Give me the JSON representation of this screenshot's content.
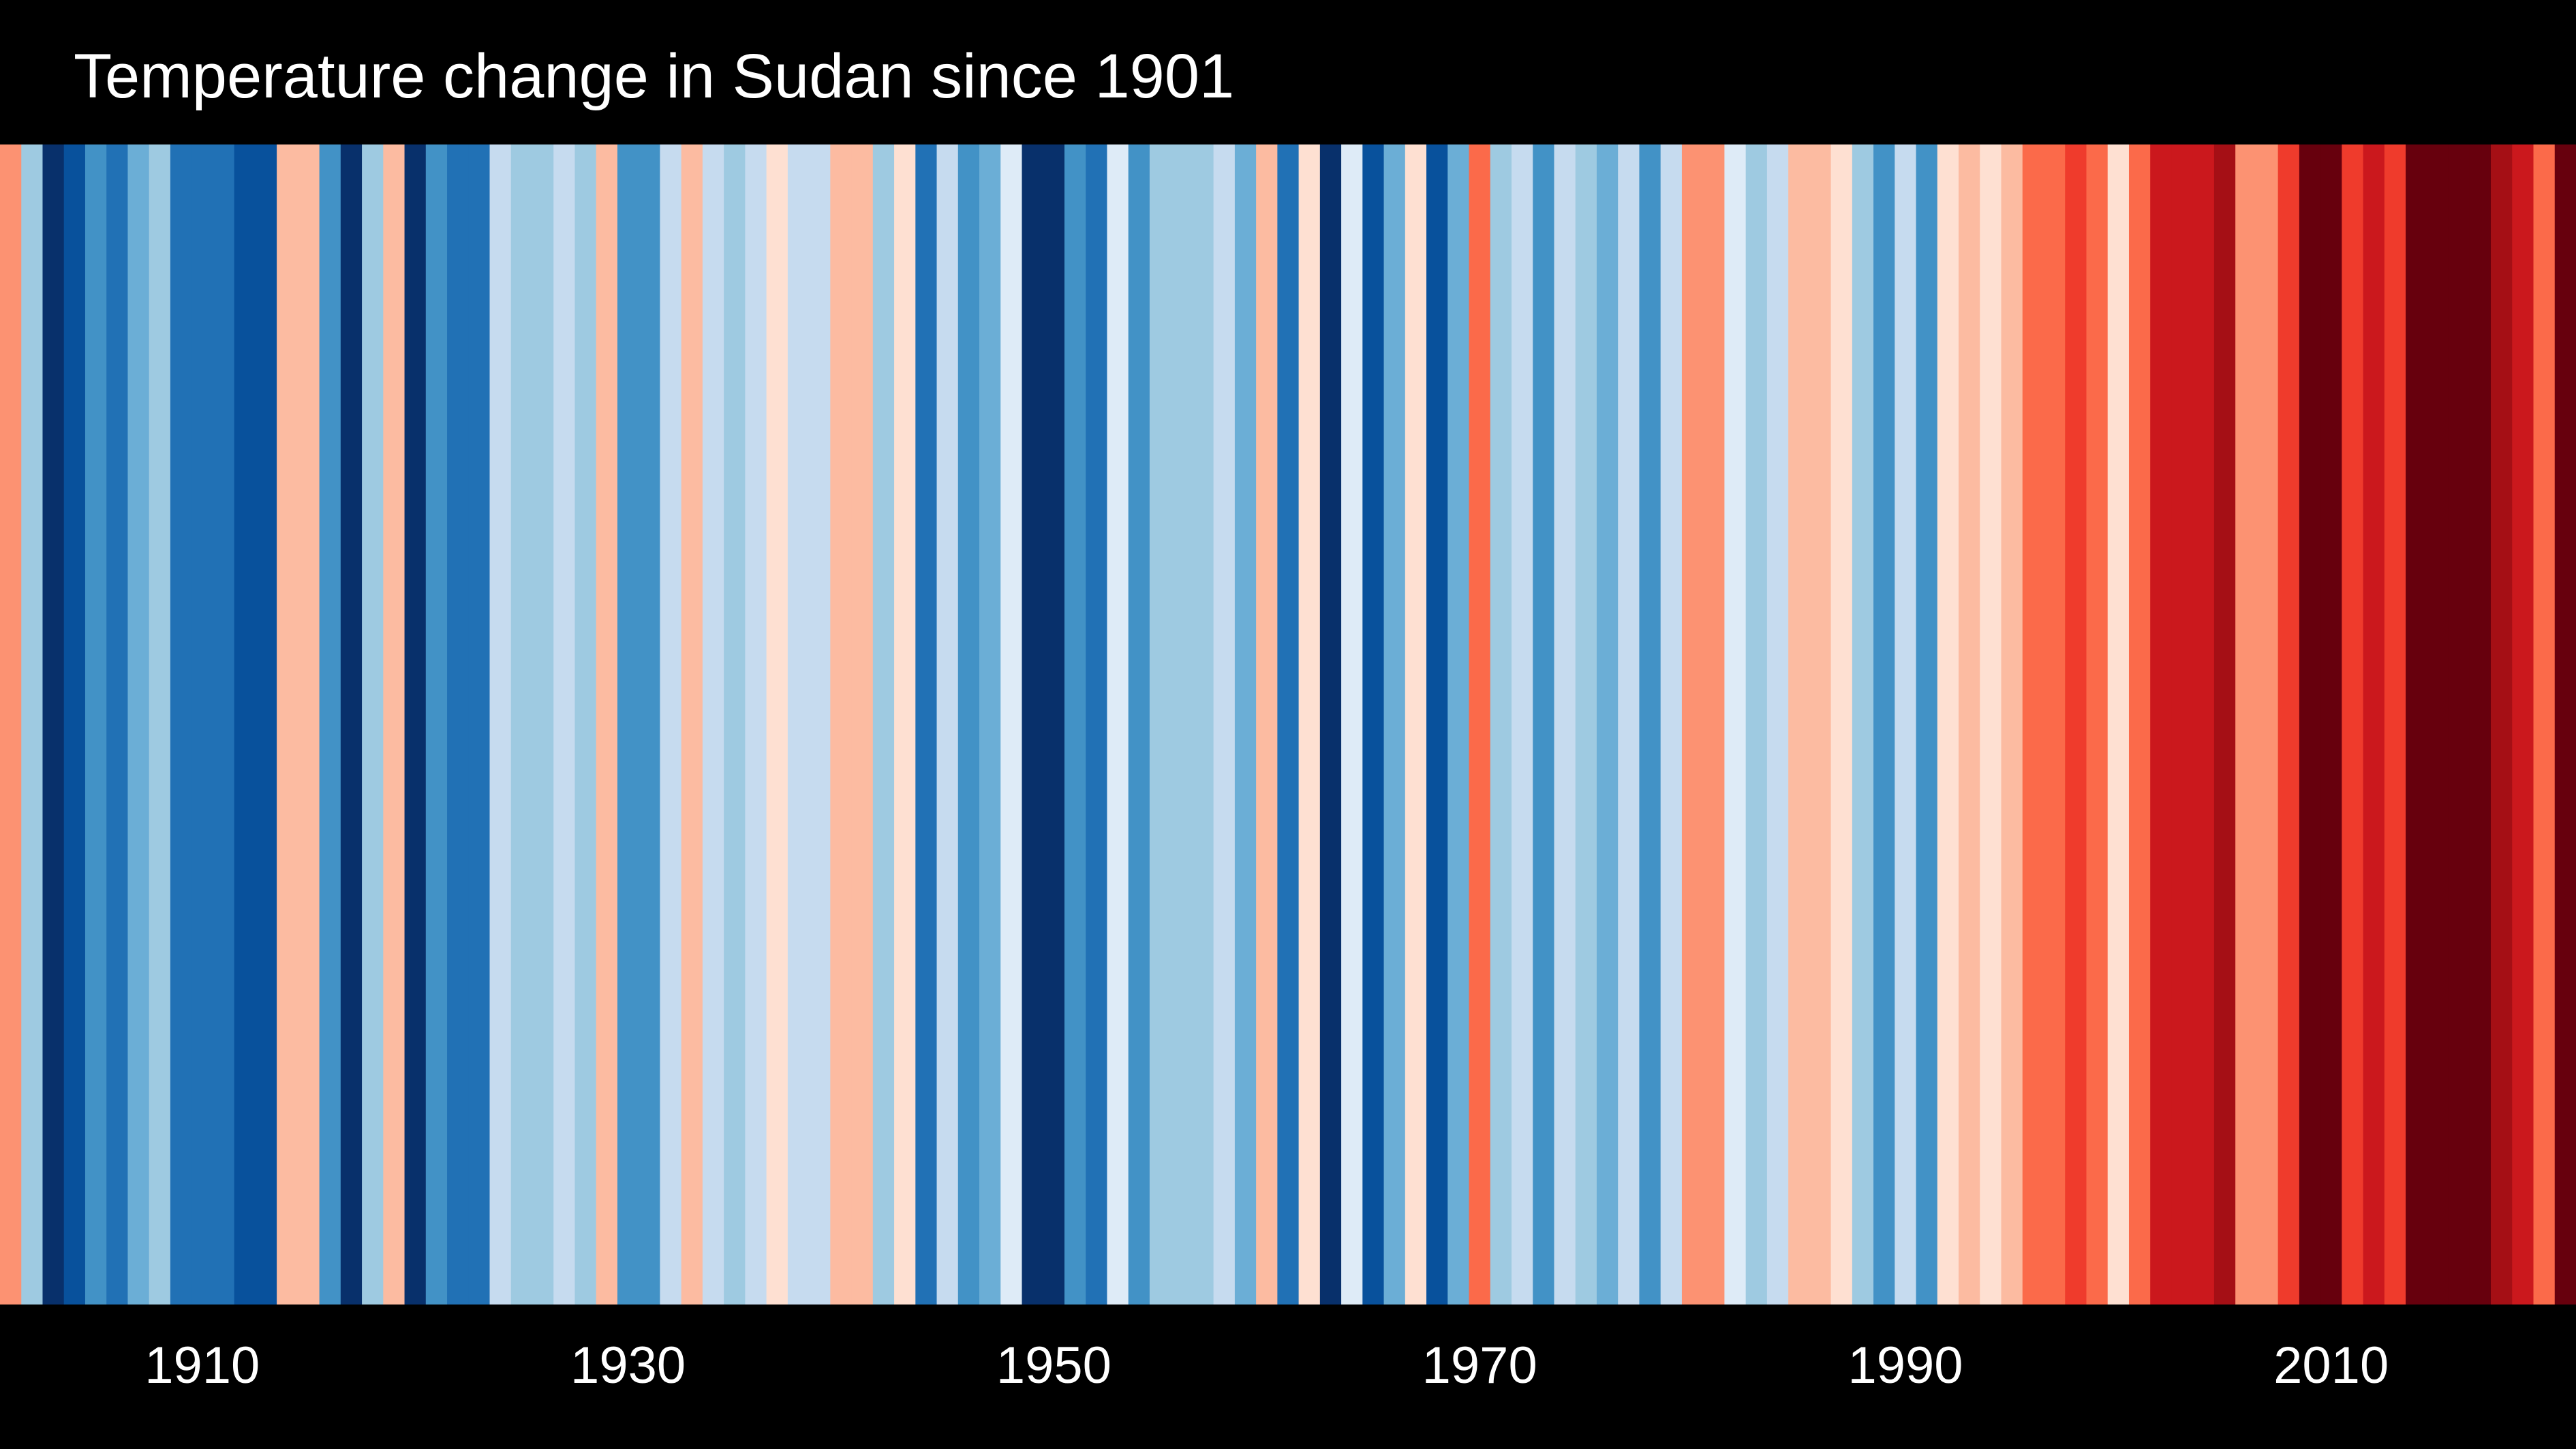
{
  "header": {
    "title": "Temperature change in Sudan since 1901"
  },
  "chart_data": {
    "type": "heatmap",
    "title": "Temperature change in Sudan since 1901",
    "x_start_year": 1901,
    "x_end_year": 2021,
    "x_tick_labels": [
      "1910",
      "1930",
      "1950",
      "1970",
      "1990",
      "2010"
    ],
    "x_tick_years": [
      1910,
      1930,
      1950,
      1970,
      1990,
      2010
    ],
    "colormap": "RdBu (reversed): dark blue = cooler, dark red = warmer",
    "years": [
      1901,
      1902,
      1903,
      1904,
      1905,
      1906,
      1907,
      1908,
      1909,
      1910,
      1911,
      1912,
      1913,
      1914,
      1915,
      1916,
      1917,
      1918,
      1919,
      1920,
      1921,
      1922,
      1923,
      1924,
      1925,
      1926,
      1927,
      1928,
      1929,
      1930,
      1931,
      1932,
      1933,
      1934,
      1935,
      1936,
      1937,
      1938,
      1939,
      1940,
      1941,
      1942,
      1943,
      1944,
      1945,
      1946,
      1947,
      1948,
      1949,
      1950,
      1951,
      1952,
      1953,
      1954,
      1955,
      1956,
      1957,
      1958,
      1959,
      1960,
      1961,
      1962,
      1963,
      1964,
      1965,
      1966,
      1967,
      1968,
      1969,
      1970,
      1971,
      1972,
      1973,
      1974,
      1975,
      1976,
      1977,
      1978,
      1979,
      1980,
      1981,
      1982,
      1983,
      1984,
      1985,
      1986,
      1987,
      1988,
      1989,
      1990,
      1991,
      1992,
      1993,
      1994,
      1995,
      1996,
      1997,
      1998,
      1999,
      2000,
      2001,
      2002,
      2003,
      2004,
      2005,
      2006,
      2007,
      2008,
      2009,
      2010,
      2011,
      2012,
      2013,
      2014,
      2015,
      2016,
      2017,
      2018,
      2019,
      2020,
      2021
    ],
    "colors": [
      "#fc9272",
      "#9ecae1",
      "#08306b",
      "#08519c",
      "#4292c6",
      "#2171b5",
      "#6baed6",
      "#9ecae1",
      "#2171b5",
      "#2171b5",
      "#2171b5",
      "#08519c",
      "#08519c",
      "#fcbba1",
      "#fcbba1",
      "#4292c6",
      "#08306b",
      "#9ecae1",
      "#fcbba1",
      "#08306b",
      "#4292c6",
      "#2171b5",
      "#2171b5",
      "#c6dbef",
      "#9ecae1",
      "#9ecae1",
      "#c6dbef",
      "#9ecae1",
      "#fcbba1",
      "#4292c6",
      "#4292c6",
      "#c6dbef",
      "#fcbba1",
      "#c6dbef",
      "#9ecae1",
      "#c6dbef",
      "#fee0d2",
      "#c6dbef",
      "#c6dbef",
      "#fcbba1",
      "#fcbba1",
      "#9ecae1",
      "#fee0d2",
      "#2171b5",
      "#c6dbef",
      "#4292c6",
      "#6baed6",
      "#deebf7",
      "#08306b",
      "#08306b",
      "#4292c6",
      "#2171b5",
      "#deebf7",
      "#4292c6",
      "#9ecae1",
      "#9ecae1",
      "#9ecae1",
      "#c6dbef",
      "#6baed6",
      "#fcbba1",
      "#2171b5",
      "#fee0d2",
      "#08306b",
      "#deebf7",
      "#08519c",
      "#6baed6",
      "#fee0d2",
      "#08519c",
      "#6baed6",
      "#fb6a4a",
      "#9ecae1",
      "#c6dbef",
      "#4292c6",
      "#c6dbef",
      "#9ecae1",
      "#6baed6",
      "#c6dbef",
      "#4292c6",
      "#c6dbef",
      "#fc9272",
      "#fc9272",
      "#deebf7",
      "#9ecae1",
      "#c6dbef",
      "#fcbba1",
      "#fcbba1",
      "#fee0d2",
      "#9ecae1",
      "#4292c6",
      "#c6dbef",
      "#4292c6",
      "#fee0d2",
      "#fcbba1",
      "#fee0d2",
      "#fcbba1",
      "#fb6a4a",
      "#fb6a4a",
      "#ef3b2c",
      "#fb6a4a",
      "#fee0d2",
      "#fb6a4a",
      "#cb181d",
      "#cb181d",
      "#cb181d",
      "#a50f15",
      "#fc9272",
      "#fc9272",
      "#ef3b2c",
      "#67000d",
      "#67000d",
      "#ef3b2c",
      "#cb181d",
      "#ef3b2c",
      "#67000d",
      "#67000d",
      "#67000d",
      "#67000d",
      "#a50f15",
      "#cb181d",
      "#fb6a4a",
      "#67000d"
    ]
  }
}
